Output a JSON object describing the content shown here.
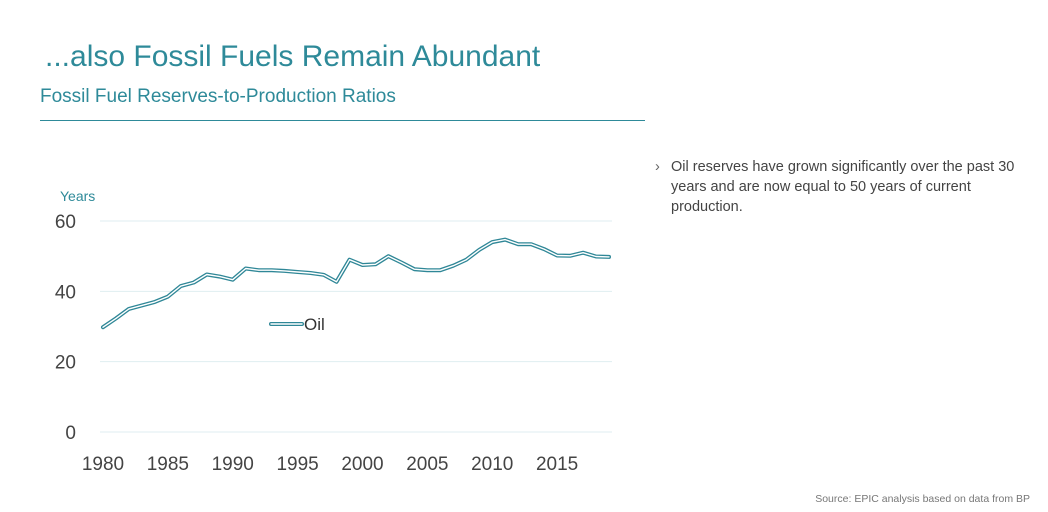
{
  "slide": {
    "title": "...also Fossil Fuels Remain Abundant",
    "subtitle": "Fossil Fuel Reserves-to-Production Ratios",
    "bullet_marker": "›",
    "bullet": "Oil reserves have grown significantly over the past 30 years and are now equal to 50 years of current production.",
    "source": "Source: EPIC analysis based on data from BP"
  },
  "colors": {
    "accent": "#2e8a99",
    "line": "#2f8797",
    "grid": "#dfeef1",
    "tick": "#444444"
  },
  "chart_data": {
    "type": "line",
    "ylabel": "Years",
    "xlabel": "",
    "ylim": [
      0,
      60
    ],
    "xlim": [
      1980,
      2019
    ],
    "y_ticks": [
      0,
      20,
      40,
      60
    ],
    "x_ticks": [
      1980,
      1985,
      1990,
      1995,
      2000,
      2005,
      2010,
      2015
    ],
    "grid": true,
    "legend_position": "center",
    "series": [
      {
        "name": "Oil",
        "x": [
          1980,
          1981,
          1982,
          1983,
          1984,
          1985,
          1986,
          1987,
          1988,
          1989,
          1990,
          1991,
          1992,
          1993,
          1994,
          1995,
          1996,
          1997,
          1998,
          1999,
          2000,
          2001,
          2002,
          2003,
          2004,
          2005,
          2006,
          2007,
          2008,
          2009,
          2010,
          2011,
          2012,
          2013,
          2014,
          2015,
          2016,
          2017,
          2018,
          2019
        ],
        "y": [
          29.8,
          32.3,
          35.0,
          36.0,
          37.0,
          38.5,
          41.5,
          42.5,
          44.8,
          44.2,
          43.3,
          46.5,
          46.0,
          46.0,
          45.8,
          45.5,
          45.2,
          44.7,
          42.7,
          49.0,
          47.5,
          47.7,
          50.0,
          48.2,
          46.3,
          46.0,
          46.0,
          47.3,
          49.0,
          51.8,
          54.0,
          54.7,
          53.4,
          53.4,
          52.0,
          50.2,
          50.1,
          51.0,
          49.9,
          49.8
        ]
      }
    ]
  }
}
